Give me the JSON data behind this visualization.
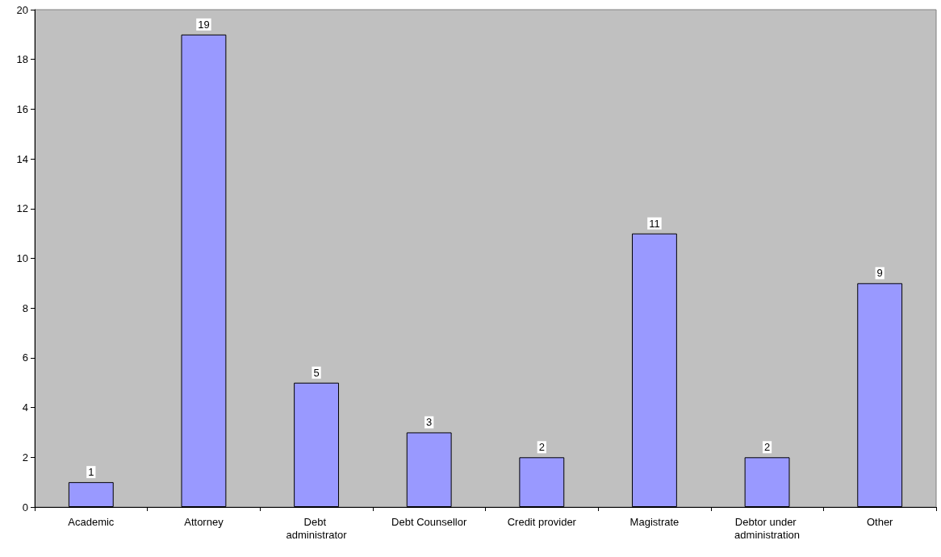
{
  "chart_data": {
    "type": "bar",
    "categories": [
      "Academic",
      "Attorney",
      "Debt administrator",
      "Debt Counsellor",
      "Credit provider",
      "Magistrate",
      "Debtor under administration",
      "Other"
    ],
    "values": [
      1,
      19,
      5,
      3,
      2,
      11,
      2,
      9
    ],
    "color": "#9999ff",
    "ylim": [
      0,
      20
    ],
    "yticks": [
      0,
      2,
      4,
      6,
      8,
      10,
      12,
      14,
      16,
      18,
      20
    ],
    "grid": false,
    "data_labels": true
  }
}
